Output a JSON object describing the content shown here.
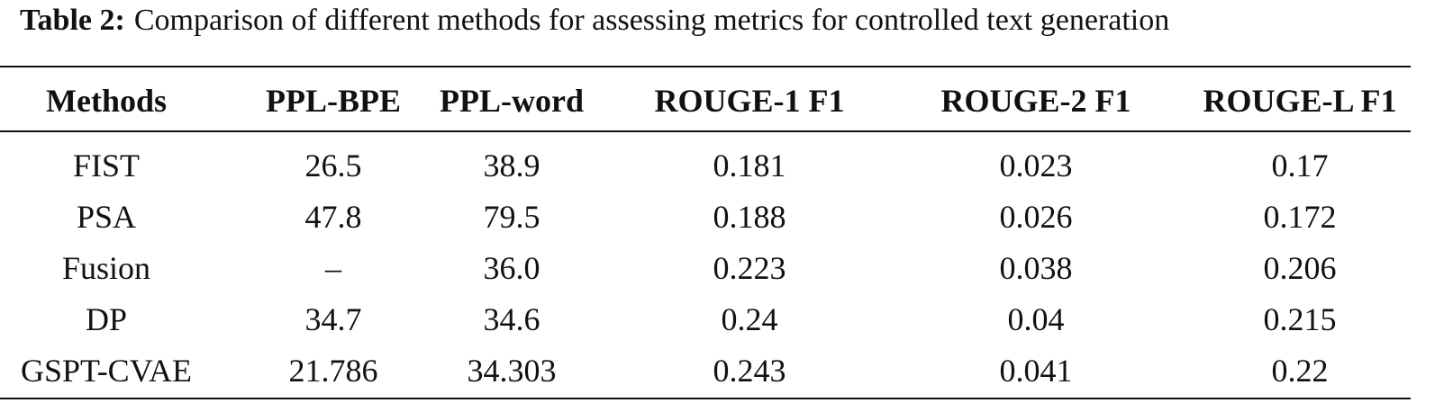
{
  "caption": {
    "label": "Table 2:",
    "text": "Comparison of different methods for assessing metrics for controlled text generation"
  },
  "table": {
    "header": [
      "Methods",
      "PPL-BPE",
      "PPL-word",
      "ROUGE-1 F1",
      "ROUGE-2 F1",
      "ROUGE-L F1"
    ],
    "rows": [
      [
        "FIST",
        "26.5",
        "38.9",
        "0.181",
        "0.023",
        "0.17"
      ],
      [
        "PSA",
        "47.8",
        "79.5",
        "0.188",
        "0.026",
        "0.172"
      ],
      [
        "Fusion",
        "–",
        "36.0",
        "0.223",
        "0.038",
        "0.206"
      ],
      [
        "DP",
        "34.7",
        "34.6",
        "0.24",
        "0.04",
        "0.215"
      ],
      [
        "GSPT-CVAE",
        "21.786",
        "34.303",
        "0.243",
        "0.041",
        "0.22"
      ]
    ]
  }
}
